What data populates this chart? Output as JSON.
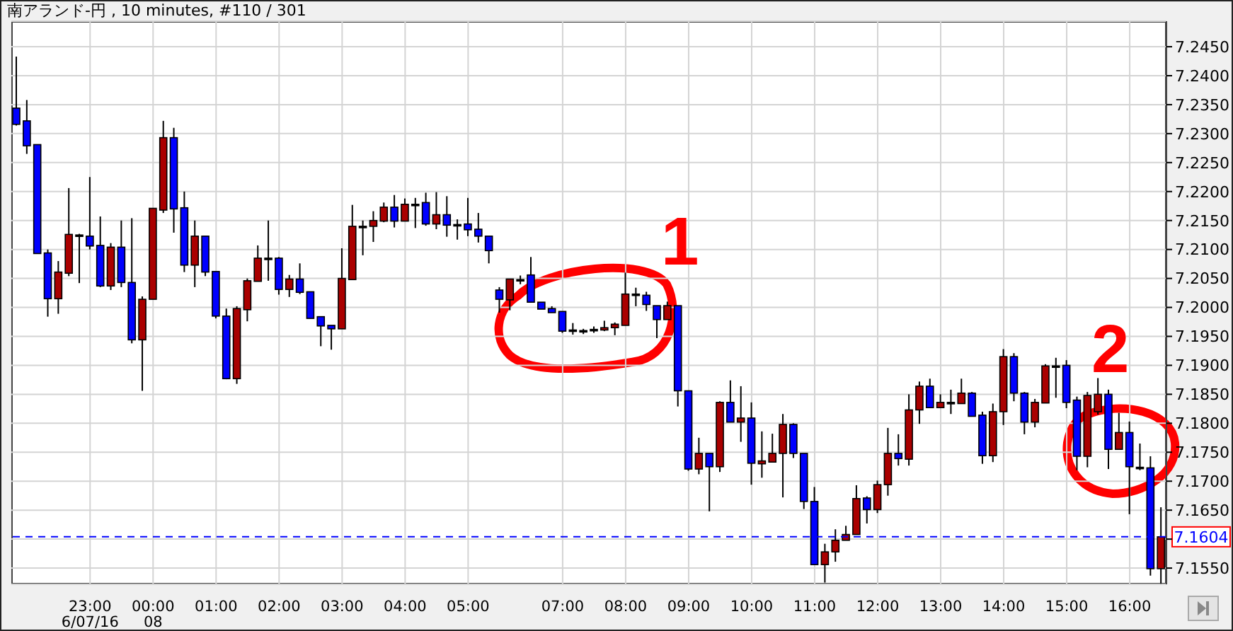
{
  "chart_data": {
    "type": "candlestick",
    "title": "南アランド-円 , 10 minutes, #110 / 301",
    "annotations": [
      "1",
      "2"
    ],
    "categories": [
      null,
      null,
      null,
      null,
      null,
      null,
      null,
      "23:00\n6/07/16",
      null,
      null,
      null,
      null,
      null,
      "00:00\n08",
      null,
      null,
      null,
      null,
      null,
      "01:00",
      null,
      null,
      null,
      null,
      null,
      "02:00",
      null,
      null,
      null,
      null,
      null,
      "03:00",
      null,
      null,
      null,
      null,
      null,
      "04:00",
      null,
      null,
      null,
      null,
      null,
      "05:00",
      null,
      null,
      null,
      null,
      null,
      null,
      null,
      null,
      "07:00",
      null,
      null,
      null,
      null,
      null,
      "08:00",
      null,
      null,
      null,
      null,
      null,
      "09:00",
      null,
      null,
      null,
      null,
      null,
      "10:00",
      null,
      null,
      null,
      null,
      null,
      "11:00",
      null,
      null,
      null,
      null,
      null,
      "12:00",
      null,
      null,
      null,
      null,
      null,
      "13:00",
      null,
      null,
      null,
      null,
      null,
      "14:00",
      null,
      null,
      null,
      null,
      null,
      "15:00",
      null,
      null,
      null,
      null,
      null,
      "16:00",
      null,
      null,
      null
    ],
    "ohlc": [
      [
        7.2344,
        7.2433,
        7.2314,
        7.2316
      ],
      [
        7.2322,
        7.2358,
        7.2265,
        7.2279
      ],
      [
        7.2281,
        7.2281,
        7.2093,
        7.2093
      ],
      [
        7.2094,
        7.21,
        7.1984,
        7.2015
      ],
      [
        7.2015,
        7.208,
        7.1989,
        7.2061
      ],
      [
        7.2059,
        7.2206,
        7.2054,
        7.2126
      ],
      [
        7.2125,
        7.2127,
        7.2042,
        7.2125
      ],
      [
        7.2123,
        7.2225,
        7.21,
        7.2106
      ],
      [
        7.2107,
        7.2157,
        7.2035,
        7.2037
      ],
      [
        7.2037,
        7.2111,
        7.203,
        7.2104
      ],
      [
        7.2104,
        7.215,
        7.2035,
        7.2043
      ],
      [
        7.2043,
        7.2154,
        7.1938,
        7.1944
      ],
      [
        7.1944,
        7.2019,
        7.1856,
        7.2014
      ],
      [
        7.2014,
        7.2171,
        7.2014,
        7.2171
      ],
      [
        7.2168,
        7.2322,
        7.2163,
        7.2293
      ],
      [
        7.2293,
        7.231,
        7.2129,
        7.217
      ],
      [
        7.2172,
        7.22,
        7.2061,
        7.2073
      ],
      [
        7.2073,
        7.215,
        7.2035,
        7.2123
      ],
      [
        7.2123,
        7.2123,
        7.2054,
        7.2061
      ],
      [
        7.2062,
        7.2062,
        7.1981,
        7.1985
      ],
      [
        7.1985,
        7.1998,
        7.1876,
        7.1877
      ],
      [
        7.1877,
        7.2002,
        7.1868,
        7.1998
      ],
      [
        7.1996,
        7.205,
        7.1976,
        7.2046
      ],
      [
        7.2045,
        7.2107,
        7.2045,
        7.2085
      ],
      [
        7.2085,
        7.215,
        7.2046,
        7.2085
      ],
      [
        7.2085,
        7.2087,
        7.2022,
        7.2031
      ],
      [
        7.2031,
        7.2056,
        7.2018,
        7.2049
      ],
      [
        7.2049,
        7.2076,
        7.2023,
        7.2026
      ],
      [
        7.2027,
        7.2027,
        7.1981,
        7.1981
      ],
      [
        7.1984,
        7.1984,
        7.1933,
        7.1968
      ],
      [
        7.1969,
        7.1969,
        7.1927,
        7.1963
      ],
      [
        7.1963,
        7.2102,
        7.1963,
        7.205
      ],
      [
        7.2048,
        7.2177,
        7.2048,
        7.214
      ],
      [
        7.214,
        7.215,
        7.209,
        7.214
      ],
      [
        7.214,
        7.2166,
        7.2113,
        7.215
      ],
      [
        7.2149,
        7.2181,
        7.2147,
        7.2173
      ],
      [
        7.2173,
        7.2194,
        7.2138,
        7.2149
      ],
      [
        7.2149,
        7.2188,
        7.2149,
        7.2178
      ],
      [
        7.2178,
        7.2189,
        7.2137,
        7.2178
      ],
      [
        7.2181,
        7.2198,
        7.2141,
        7.2144
      ],
      [
        7.2144,
        7.2199,
        7.2135,
        7.216
      ],
      [
        7.216,
        7.2192,
        7.2122,
        7.2142
      ],
      [
        7.2143,
        7.2152,
        7.2117,
        7.2143
      ],
      [
        7.2144,
        7.2189,
        7.2123,
        7.2134
      ],
      [
        7.2135,
        7.2163,
        7.2112,
        7.2123
      ],
      [
        7.2123,
        7.2123,
        7.2076,
        7.2098
      ],
      [
        7.203,
        7.2035,
        7.1991,
        7.2014
      ],
      [
        7.2013,
        7.2049,
        7.1995,
        7.2049
      ],
      [
        7.2048,
        7.2055,
        7.204,
        7.2048
      ],
      [
        7.2056,
        7.2087,
        7.2009,
        7.2009
      ],
      [
        7.2009,
        7.2009,
        7.1997,
        7.1997
      ],
      [
        7.1998,
        7.2002,
        7.1991,
        7.1991
      ],
      [
        7.1993,
        7.1993,
        7.1956,
        7.1959
      ],
      [
        7.1961,
        7.1973,
        7.1953,
        7.1961
      ],
      [
        7.196,
        7.1963,
        7.1954,
        7.196
      ],
      [
        7.1962,
        7.1967,
        7.1956,
        7.1962
      ],
      [
        7.1961,
        7.1977,
        7.1959,
        7.1965
      ],
      [
        7.1965,
        7.1974,
        7.1952,
        7.1971
      ],
      [
        7.1969,
        7.206,
        7.1969,
        7.2023
      ],
      [
        7.2023,
        7.2034,
        7.2002,
        7.2023
      ],
      [
        7.2021,
        7.2027,
        7.1994,
        7.2005
      ],
      [
        7.2003,
        7.2003,
        7.1947,
        7.1979
      ],
      [
        7.1979,
        7.201,
        7.1979,
        7.2003
      ],
      [
        7.2003,
        7.2003,
        7.1829,
        7.1856
      ],
      [
        7.1856,
        7.1856,
        7.1718,
        7.1721
      ],
      [
        7.1721,
        7.1775,
        7.1712,
        7.1748
      ],
      [
        7.1748,
        7.1748,
        7.1648,
        7.1725
      ],
      [
        7.1725,
        7.1838,
        7.1716,
        7.1836
      ],
      [
        7.1836,
        7.1874,
        7.1802,
        7.1802
      ],
      [
        7.1802,
        7.1864,
        7.1768,
        7.1809
      ],
      [
        7.1809,
        7.1836,
        7.1694,
        7.1731
      ],
      [
        7.173,
        7.1786,
        7.1706,
        7.1735
      ],
      [
        7.1733,
        7.1782,
        7.1733,
        7.1748
      ],
      [
        7.1748,
        7.1816,
        7.1672,
        7.1798
      ],
      [
        7.1798,
        7.18,
        7.174,
        7.1748
      ],
      [
        7.1748,
        7.1748,
        7.1652,
        7.1665
      ],
      [
        7.1665,
        7.169,
        7.1556,
        7.1556
      ],
      [
        7.1556,
        7.1592,
        7.1525,
        7.1578
      ],
      [
        7.1578,
        7.1617,
        7.1561,
        7.1598
      ],
      [
        7.1598,
        7.1623,
        7.1598,
        7.1608
      ],
      [
        7.1608,
        7.1693,
        7.1608,
        7.167
      ],
      [
        7.1671,
        7.1674,
        7.1627,
        7.1651
      ],
      [
        7.1651,
        7.1701,
        7.1645,
        7.1694
      ],
      [
        7.1694,
        7.1792,
        7.1675,
        7.1748
      ],
      [
        7.1748,
        7.1781,
        7.1727,
        7.1739
      ],
      [
        7.1738,
        7.185,
        7.1727,
        7.1823
      ],
      [
        7.1823,
        7.1872,
        7.1799,
        7.1864
      ],
      [
        7.1864,
        7.1877,
        7.1827,
        7.1827
      ],
      [
        7.1827,
        7.185,
        7.1826,
        7.1836
      ],
      [
        7.1836,
        7.1858,
        7.1816,
        7.1836
      ],
      [
        7.1834,
        7.1877,
        7.1834,
        7.1852
      ],
      [
        7.1852,
        7.1854,
        7.1812,
        7.1812
      ],
      [
        7.1814,
        7.182,
        7.173,
        7.1744
      ],
      [
        7.1744,
        7.1834,
        7.1733,
        7.182
      ],
      [
        7.182,
        7.1928,
        7.1797,
        7.1915
      ],
      [
        7.1915,
        7.1921,
        7.1838,
        7.1852
      ],
      [
        7.1852,
        7.1854,
        7.1781,
        7.1802
      ],
      [
        7.1802,
        7.1842,
        7.1793,
        7.1836
      ],
      [
        7.1835,
        7.1902,
        7.1835,
        7.1899
      ],
      [
        7.1899,
        7.1913,
        7.1844,
        7.1899
      ],
      [
        7.19,
        7.1909,
        7.1826,
        7.1836
      ],
      [
        7.184,
        7.1846,
        7.1719,
        7.1743
      ],
      [
        7.1743,
        7.1854,
        7.1724,
        7.1848
      ],
      [
        7.182,
        7.1878,
        7.1815,
        7.185
      ],
      [
        7.185,
        7.1858,
        7.1721,
        7.1755
      ],
      [
        7.1755,
        7.1818,
        7.1755,
        7.1784
      ],
      [
        7.1784,
        7.1803,
        7.1643,
        7.1725
      ],
      [
        7.1724,
        7.1765,
        7.1719,
        7.1724
      ],
      [
        7.1723,
        7.1743,
        7.1537,
        7.1549
      ],
      [
        7.1549,
        7.1655,
        7.1523,
        7.1604
      ]
    ],
    "colors": [
      "#0000ff",
      "#0000ff",
      "#0000ff",
      "#0000ff",
      "#aa0000",
      "#aa0000",
      "#000000",
      "#0000ff",
      "#0000ff",
      "#aa0000",
      "#0000ff",
      "#0000ff",
      "#aa0000",
      "#aa0000",
      "#aa0000",
      "#0000ff",
      "#0000ff",
      "#aa0000",
      "#0000ff",
      "#0000ff",
      "#0000ff",
      "#aa0000",
      "#aa0000",
      "#aa0000",
      "#000000",
      "#0000ff",
      "#aa0000",
      "#0000ff",
      "#0000ff",
      "#0000ff",
      "#0000ff",
      "#aa0000",
      "#aa0000",
      "#000000",
      "#aa0000",
      "#aa0000",
      "#0000ff",
      "#aa0000",
      "#000000",
      "#0000ff",
      "#aa0000",
      "#0000ff",
      "#000000",
      "#0000ff",
      "#0000ff",
      "#0000ff",
      "#0000ff",
      "#aa0000",
      "#000000",
      "#0000ff",
      "#0000ff",
      "#0000ff",
      "#0000ff",
      "#000000",
      "#000000",
      "#000000",
      "#aa0000",
      "#aa0000",
      "#aa0000",
      "#000000",
      "#0000ff",
      "#0000ff",
      "#aa0000",
      "#0000ff",
      "#0000ff",
      "#aa0000",
      "#0000ff",
      "#aa0000",
      "#0000ff",
      "#aa0000",
      "#0000ff",
      "#aa0000",
      "#aa0000",
      "#aa0000",
      "#0000ff",
      "#0000ff",
      "#0000ff",
      "#aa0000",
      "#aa0000",
      "#aa0000",
      "#aa0000",
      "#0000ff",
      "#aa0000",
      "#aa0000",
      "#0000ff",
      "#aa0000",
      "#aa0000",
      "#0000ff",
      "#aa0000",
      "#000000",
      "#aa0000",
      "#0000ff",
      "#0000ff",
      "#aa0000",
      "#aa0000",
      "#0000ff",
      "#0000ff",
      "#aa0000",
      "#aa0000",
      "#000000",
      "#0000ff",
      "#0000ff",
      "#aa0000",
      "#aa0000",
      "#0000ff",
      "#aa0000",
      "#0000ff",
      "#000000",
      "#0000ff",
      "#aa0000"
    ],
    "ylim": [
      7.1522,
      7.2494
    ],
    "yticks": [
      {
        "value": 7.155,
        "label": "7.1550"
      },
      {
        "value": 7.16,
        "label": null
      },
      {
        "value": 7.165,
        "label": "7.1650"
      },
      {
        "value": 7.17,
        "label": "7.1700"
      },
      {
        "value": 7.175,
        "label": "7.1750"
      },
      {
        "value": 7.18,
        "label": "7.1800"
      },
      {
        "value": 7.185,
        "label": "7.1850"
      },
      {
        "value": 7.19,
        "label": "7.1900"
      },
      {
        "value": 7.195,
        "label": "7.1950"
      },
      {
        "value": 7.2,
        "label": "7.2000"
      },
      {
        "value": 7.205,
        "label": "7.2050"
      },
      {
        "value": 7.21,
        "label": "7.2100"
      },
      {
        "value": 7.215,
        "label": "7.2150"
      },
      {
        "value": 7.22,
        "label": "7.2200"
      },
      {
        "value": 7.225,
        "label": "7.2250"
      },
      {
        "value": 7.23,
        "label": "7.2300"
      },
      {
        "value": 7.235,
        "label": "7.2350"
      },
      {
        "value": 7.24,
        "label": "7.2400"
      },
      {
        "value": 7.245,
        "label": "7.2450"
      }
    ],
    "ref_lines": [
      {
        "axis": "y",
        "value": 7.1604,
        "label": "7.1604",
        "color": "#0000ff",
        "line_style": "dashed"
      }
    ],
    "grid": true
  }
}
